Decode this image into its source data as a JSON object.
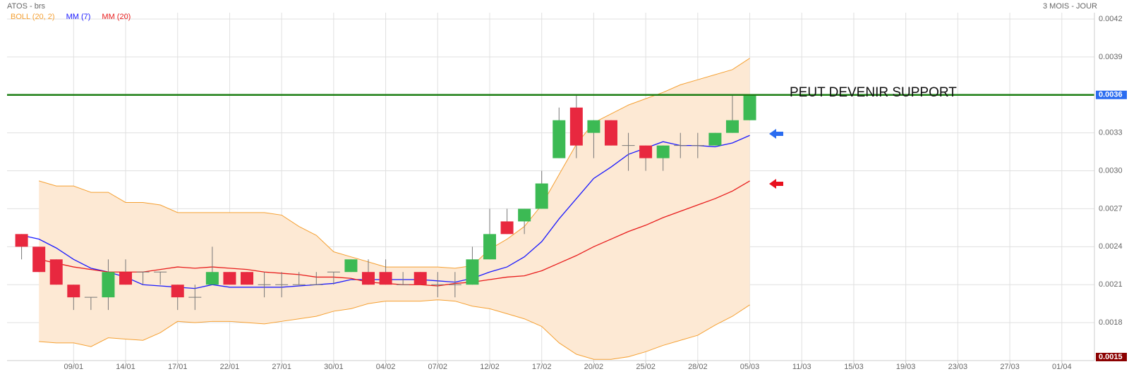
{
  "chart_data": {
    "type": "candlestick",
    "title": "ATOS - brs",
    "period": "3 MOIS - JOUR",
    "categories": [
      null,
      null,
      null,
      "09/01",
      null,
      null,
      "14/01",
      null,
      null,
      "17/01",
      null,
      null,
      "22/01",
      null,
      null,
      "27/01",
      null,
      null,
      "30/01",
      null,
      null,
      "04/02",
      null,
      null,
      "07/02",
      null,
      null,
      "12/02",
      null,
      null,
      "17/02",
      null,
      null,
      "20/02",
      null,
      null,
      "25/02",
      null,
      null,
      "28/02",
      null,
      null,
      "05/03",
      null,
      null,
      "11/03",
      null,
      null,
      "15/03",
      null,
      null,
      "19/03",
      null,
      null,
      "23/03",
      null,
      null,
      "27/03",
      null,
      null,
      "01/04",
      null
    ],
    "ohlc": {
      "up_color": "#3cba54",
      "down_color": "#e8283f",
      "open": [
        0.0025,
        0.0024,
        0.0023,
        0.0021,
        0.002,
        0.002,
        0.0022,
        0.0022,
        0.0022,
        0.0021,
        0.002,
        0.0021,
        0.0022,
        0.0022,
        0.0021,
        0.0021,
        0.0021,
        0.0021,
        0.0022,
        0.0022,
        0.0022,
        0.0022,
        0.0021,
        0.0022,
        0.0021,
        0.0021,
        0.0021,
        0.0023,
        0.0026,
        0.0026,
        0.0027,
        0.0031,
        0.0035,
        0.0033,
        0.0034,
        0.0032,
        0.0032,
        0.0031,
        0.0032,
        0.0032,
        0.0032,
        0.0033,
        0.0034,
        null,
        null,
        null,
        null,
        null,
        null,
        null,
        null,
        null,
        null,
        null,
        null,
        null,
        null,
        null,
        null,
        null,
        null,
        null
      ],
      "high": [
        0.0025,
        0.0024,
        0.0023,
        0.0021,
        0.002,
        0.0023,
        0.0023,
        0.0022,
        0.0022,
        0.0021,
        0.0021,
        0.0024,
        0.0022,
        0.0022,
        0.0022,
        0.0022,
        0.0022,
        0.0022,
        0.0022,
        0.0023,
        0.0023,
        0.0023,
        0.0022,
        0.0022,
        0.0022,
        0.0022,
        0.0024,
        0.0027,
        0.0027,
        0.0027,
        0.003,
        0.0035,
        0.0036,
        0.0034,
        0.0034,
        0.0033,
        0.0032,
        0.0032,
        0.0033,
        0.0033,
        0.0033,
        0.0036,
        0.0036,
        null,
        null,
        null,
        null,
        null,
        null,
        null,
        null,
        null,
        null,
        null,
        null,
        null,
        null,
        null,
        null,
        null,
        null,
        null
      ],
      "low": [
        0.0023,
        0.0022,
        0.0021,
        0.0019,
        0.0019,
        0.0019,
        0.0021,
        0.0021,
        0.0021,
        0.0019,
        0.0019,
        0.0021,
        0.0021,
        0.0021,
        0.002,
        0.002,
        0.0021,
        0.0021,
        0.0021,
        0.0022,
        0.0021,
        0.0021,
        0.0021,
        0.0021,
        0.002,
        0.002,
        0.0021,
        0.0023,
        0.0025,
        0.0025,
        0.0027,
        0.0031,
        0.0031,
        0.0031,
        0.0032,
        0.003,
        0.003,
        0.003,
        0.0031,
        0.0031,
        0.0032,
        0.0033,
        0.0034,
        null,
        null,
        null,
        null,
        null,
        null,
        null,
        null,
        null,
        null,
        null,
        null,
        null,
        null,
        null,
        null,
        null,
        null,
        null
      ],
      "close": [
        0.0024,
        0.0022,
        0.0021,
        0.002,
        0.002,
        0.0022,
        0.0021,
        0.0022,
        0.0022,
        0.002,
        0.002,
        0.0022,
        0.0021,
        0.0021,
        0.0021,
        0.0021,
        0.0021,
        0.0021,
        0.0022,
        0.0023,
        0.0021,
        0.0021,
        0.0021,
        0.0021,
        0.0021,
        0.0021,
        0.0023,
        0.0025,
        0.0025,
        0.0027,
        0.0029,
        0.0034,
        0.0032,
        0.0034,
        0.0032,
        0.0032,
        0.0031,
        0.0032,
        0.0032,
        0.0032,
        0.0033,
        0.0034,
        0.0036,
        null,
        null,
        null,
        null,
        null,
        null,
        null,
        null,
        null,
        null,
        null,
        null,
        null,
        null,
        null,
        null,
        null,
        null,
        null
      ]
    },
    "bollinger": {
      "name": "BOLL (20, 2)",
      "color": "#f5a032",
      "fill": "#fde9d4",
      "upper": [
        null,
        0.00292,
        0.00288,
        0.00288,
        0.00283,
        0.00283,
        0.00275,
        0.00275,
        0.00273,
        0.00267,
        0.00267,
        0.00267,
        0.00267,
        0.00267,
        0.00267,
        0.00265,
        0.00256,
        0.00249,
        0.00236,
        0.00232,
        0.00228,
        0.00224,
        0.00224,
        0.00224,
        0.00224,
        0.00223,
        0.00225,
        0.00238,
        0.00246,
        0.00256,
        0.00273,
        0.00297,
        0.00321,
        0.00338,
        0.00345,
        0.00352,
        0.00357,
        0.00362,
        0.00368,
        0.00372,
        0.00376,
        0.0038,
        0.00389,
        null,
        null,
        null,
        null,
        null,
        null,
        null,
        null,
        null,
        null,
        null,
        null,
        null,
        null,
        null,
        null,
        null,
        null,
        null
      ],
      "lower": [
        null,
        0.00165,
        0.00164,
        0.00164,
        0.00161,
        0.00168,
        0.00167,
        0.00166,
        0.00172,
        0.00181,
        0.0018,
        0.00181,
        0.00181,
        0.0018,
        0.00179,
        0.00181,
        0.00183,
        0.00185,
        0.00189,
        0.00191,
        0.00195,
        0.00197,
        0.00197,
        0.00197,
        0.00198,
        0.00197,
        0.00193,
        0.00191,
        0.00187,
        0.00183,
        0.00177,
        0.00164,
        0.00155,
        0.00151,
        0.00151,
        0.00153,
        0.00157,
        0.00162,
        0.00166,
        0.0017,
        0.00178,
        0.00185,
        0.00194,
        null,
        null,
        null,
        null,
        null,
        null,
        null,
        null,
        null,
        null,
        null,
        null,
        null,
        null,
        null,
        null,
        null,
        null,
        null
      ]
    },
    "series": [
      {
        "name": "MM (7)",
        "color": "#1a1aff",
        "values": [
          0.00249,
          0.00246,
          0.00239,
          0.0023,
          0.00223,
          0.0022,
          0.00216,
          0.0021,
          0.00209,
          0.00208,
          0.00207,
          0.0021,
          0.00208,
          0.00208,
          0.00208,
          0.00208,
          0.00209,
          0.0021,
          0.00211,
          0.00214,
          0.00214,
          0.00214,
          0.00214,
          0.00214,
          0.00213,
          0.00212,
          0.00215,
          0.0022,
          0.00224,
          0.00232,
          0.00244,
          0.00262,
          0.00278,
          0.00294,
          0.00303,
          0.00313,
          0.00318,
          0.00323,
          0.0032,
          0.0032,
          0.00319,
          0.00322,
          0.00328,
          null,
          null,
          null,
          null,
          null,
          null,
          null,
          null,
          null,
          null,
          null,
          null,
          null,
          null,
          null,
          null,
          null,
          null,
          null
        ]
      },
      {
        "name": "MM (20)",
        "color": "#e81c1c",
        "values": [
          null,
          0.0023,
          0.00227,
          0.00224,
          0.00222,
          0.0022,
          0.0022,
          0.0022,
          0.00222,
          0.00224,
          0.00223,
          0.00224,
          0.00223,
          0.00222,
          0.0022,
          0.00219,
          0.00218,
          0.00216,
          0.00216,
          0.00215,
          0.00212,
          0.00211,
          0.0021,
          0.0021,
          0.00209,
          0.00211,
          0.00212,
          0.00214,
          0.00216,
          0.00217,
          0.00221,
          0.00227,
          0.00233,
          0.0024,
          0.00246,
          0.00252,
          0.00257,
          0.00263,
          0.00268,
          0.00273,
          0.00278,
          0.00284,
          0.00292,
          null,
          null,
          null,
          null,
          null,
          null,
          null,
          null,
          null,
          null,
          null,
          null,
          null,
          null,
          null,
          null,
          null,
          null,
          null
        ]
      }
    ],
    "hline": {
      "value": 0.0036,
      "label": "PEUT DEVENIR SUPPORT",
      "color": "#1b7d12"
    },
    "ylim": [
      0.0015,
      0.00425
    ],
    "yticks": [
      0.0015,
      0.0018,
      0.0021,
      0.0024,
      0.0027,
      {
        "value": 0.003,
        "label": "0.0030"
      },
      0.0033,
      0.0036,
      0.0039,
      0.0042
    ],
    "grid": true
  }
}
